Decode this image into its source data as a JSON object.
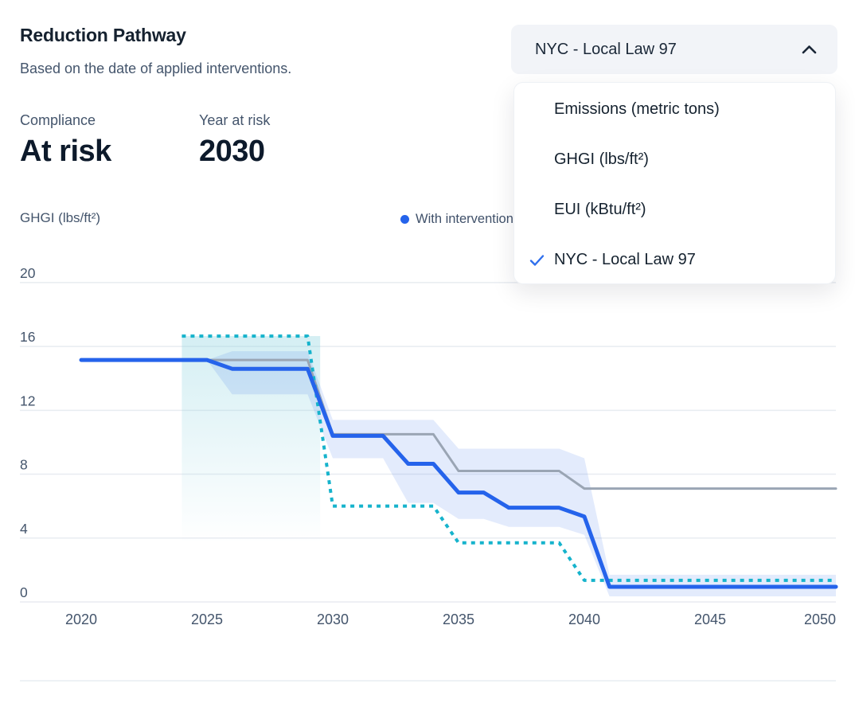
{
  "header": {
    "title": "Reduction Pathway",
    "subtitle": "Based on the date of applied interventions.",
    "stats": [
      {
        "label": "Compliance",
        "value": "At risk"
      },
      {
        "label": "Year at risk",
        "value": "2030"
      }
    ]
  },
  "metric_dropdown": {
    "selected": "NYC - Local Law 97",
    "options": [
      "Emissions (metric tons)",
      "GHGI (lbs/ft²)",
      "EUI (kBtu/ft²)",
      "NYC - Local Law 97"
    ],
    "checked_option": "NYC - Local Law 97"
  },
  "legend": [
    {
      "label": "With interventions",
      "color": "#2563eb"
    }
  ],
  "chart_data": {
    "type": "line",
    "title": "Reduction Pathway",
    "ylabel": "GHGI (lbs/ft²)",
    "xlabel": "",
    "grid": true,
    "xlim": [
      2017.5,
      2050
    ],
    "ylim": [
      0,
      20
    ],
    "x_ticks": [
      2020,
      2025,
      2030,
      2035,
      2040,
      2045,
      2050
    ],
    "y_ticks": [
      0,
      4,
      8,
      12,
      16,
      20
    ],
    "series": [
      {
        "id": "baseline",
        "label": "",
        "color": "#9aa5b4",
        "width": 3,
        "style": "solid",
        "points": [
          [
            2020,
            15.15
          ],
          [
            2029,
            15.15
          ],
          [
            2030,
            10.5
          ],
          [
            2034,
            10.5
          ],
          [
            2035,
            8.2
          ],
          [
            2039,
            8.2
          ],
          [
            2040,
            7.1
          ],
          [
            2050,
            7.1
          ]
        ]
      },
      {
        "id": "nyc-local-law-97-limit",
        "label": "",
        "color": "#16b3cc",
        "width": 4,
        "style": "dotted",
        "points": [
          [
            2024,
            16.65
          ],
          [
            2029,
            16.65
          ],
          [
            2030,
            6.0
          ],
          [
            2034,
            6.0
          ],
          [
            2035,
            3.7
          ],
          [
            2039,
            3.7
          ],
          [
            2040,
            1.35
          ],
          [
            2050,
            1.35
          ]
        ]
      },
      {
        "id": "with-interventions",
        "label": "With interventions",
        "color": "#2563eb",
        "width": 5,
        "style": "solid",
        "points": [
          [
            2020,
            15.15
          ],
          [
            2025,
            15.15
          ],
          [
            2026,
            14.6
          ],
          [
            2029,
            14.6
          ],
          [
            2030,
            10.4
          ],
          [
            2032,
            10.4
          ],
          [
            2033,
            8.65
          ],
          [
            2034,
            8.65
          ],
          [
            2035,
            6.85
          ],
          [
            2036,
            6.85
          ],
          [
            2037,
            5.9
          ],
          [
            2039,
            5.9
          ],
          [
            2040,
            5.35
          ],
          [
            2041,
            0.95
          ],
          [
            2050,
            0.95
          ]
        ]
      }
    ],
    "uncertainty_band": {
      "fill": "rgba(37,99,235,0.13)",
      "upper": [
        [
          2025,
          15.15
        ],
        [
          2026,
          15.7
        ],
        [
          2029,
          15.7
        ],
        [
          2030,
          11.4
        ],
        [
          2034,
          11.4
        ],
        [
          2035,
          9.6
        ],
        [
          2039,
          9.6
        ],
        [
          2040,
          9.0
        ],
        [
          2041,
          1.7
        ],
        [
          2050,
          1.7
        ]
      ],
      "lower": [
        [
          2025,
          15.15
        ],
        [
          2026,
          13.0
        ],
        [
          2029,
          13.0
        ],
        [
          2030,
          9.0
        ],
        [
          2032,
          9.0
        ],
        [
          2033,
          6.2
        ],
        [
          2034,
          6.2
        ],
        [
          2035,
          5.2
        ],
        [
          2036,
          5.2
        ],
        [
          2037,
          4.7
        ],
        [
          2039,
          4.7
        ],
        [
          2040,
          4.2
        ],
        [
          2041,
          0.35
        ],
        [
          2050,
          0.35
        ]
      ]
    },
    "highlight_region": {
      "from_year": 2024,
      "to_year": 2029.5,
      "top_value": 16.65
    },
    "legend_position": "top-right"
  },
  "colors": {
    "accent_blue": "#2563eb",
    "baseline_gray": "#9aa5b4",
    "limit_teal": "#16b3cc",
    "grid": "#e8ecf1",
    "muted_text": "#44556c",
    "dark_text": "#0d1a2b",
    "dropdown_bg": "#f2f4f8"
  }
}
